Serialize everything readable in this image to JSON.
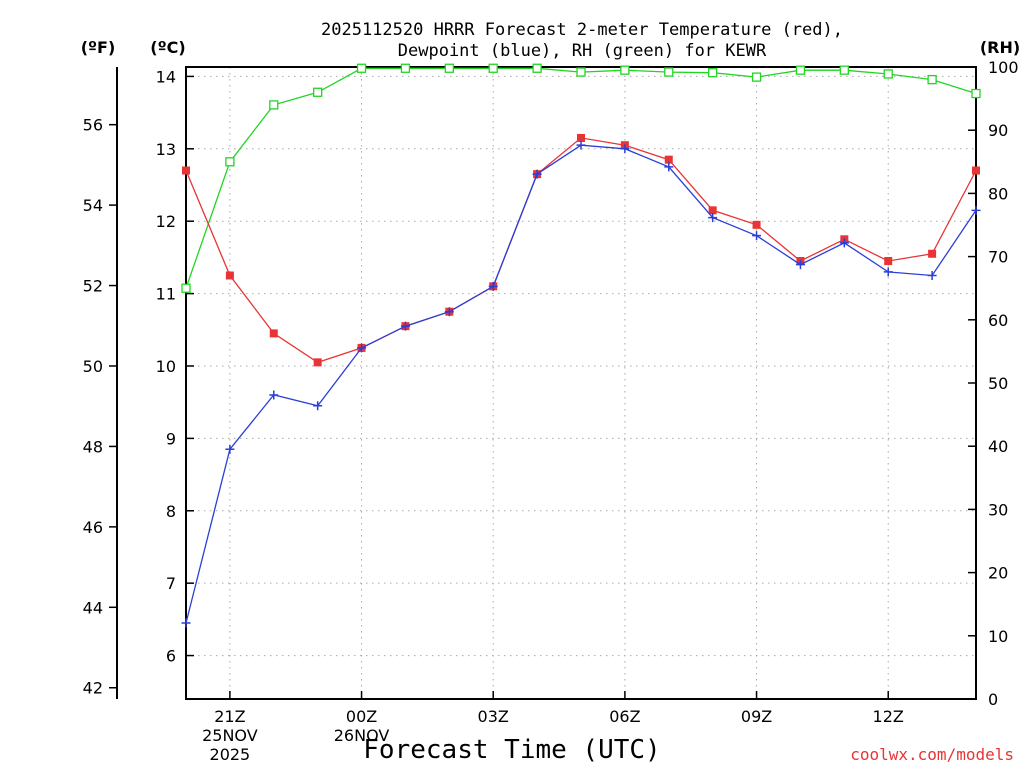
{
  "chart_data": {
    "type": "line",
    "title_line1": "2025112520 HRRR Forecast 2-meter Temperature (red),",
    "title_line2": "Dewpoint (blue), RH (green) for KEWR",
    "xlabel": "Forecast Time (UTC)",
    "unit_f": "(ºF)",
    "unit_c": "(ºC)",
    "unit_rh": "(RH)",
    "credit": "coolwx.com/models",
    "x_hours": [
      0,
      1,
      2,
      3,
      4,
      5,
      6,
      7,
      8,
      9,
      10,
      11,
      12,
      13,
      14,
      15,
      16,
      17,
      18
    ],
    "x_ticks": [
      {
        "hour": 1,
        "lines": [
          "21Z",
          "25NOV",
          "2025"
        ]
      },
      {
        "hour": 4,
        "lines": [
          "00Z",
          "26NOV"
        ]
      },
      {
        "hour": 7,
        "lines": [
          "03Z"
        ]
      },
      {
        "hour": 10,
        "lines": [
          "06Z"
        ]
      },
      {
        "hour": 13,
        "lines": [
          "09Z"
        ]
      },
      {
        "hour": 16,
        "lines": [
          "12Z"
        ]
      }
    ],
    "xlim": [
      0,
      18
    ],
    "c_ticks": [
      6,
      7,
      8,
      9,
      10,
      11,
      12,
      13,
      14
    ],
    "c_lim": [
      5.4,
      14.13
    ],
    "f_ticks": [
      42,
      44,
      46,
      48,
      50,
      52,
      54,
      56
    ],
    "rh_ticks": [
      0,
      10,
      20,
      30,
      40,
      50,
      60,
      70,
      80,
      90,
      100
    ],
    "rh_lim": [
      0,
      100
    ],
    "series": [
      {
        "name": "Temperature",
        "unit": "C",
        "color": "#e83434",
        "marker": "filled-square",
        "values": [
          12.7,
          11.25,
          10.45,
          10.05,
          10.25,
          10.55,
          10.75,
          11.1,
          12.65,
          13.15,
          13.05,
          12.85,
          12.15,
          11.95,
          11.45,
          11.75,
          11.45,
          11.55,
          12.7
        ]
      },
      {
        "name": "Dewpoint",
        "unit": "C",
        "color": "#2b3ed8",
        "marker": "plus",
        "values": [
          6.45,
          8.85,
          9.6,
          9.45,
          10.25,
          10.55,
          10.75,
          11.1,
          12.65,
          13.05,
          13.0,
          12.75,
          12.05,
          11.8,
          11.4,
          11.7,
          11.3,
          11.25,
          12.15
        ]
      },
      {
        "name": "RH",
        "unit": "%",
        "color": "#22d522",
        "marker": "open-square",
        "values": [
          65,
          85,
          94,
          96,
          99.8,
          99.8,
          99.8,
          99.8,
          99.8,
          99.2,
          99.5,
          99.2,
          99.1,
          98.4,
          99.5,
          99.5,
          98.9,
          98.0,
          95.8
        ]
      }
    ]
  }
}
